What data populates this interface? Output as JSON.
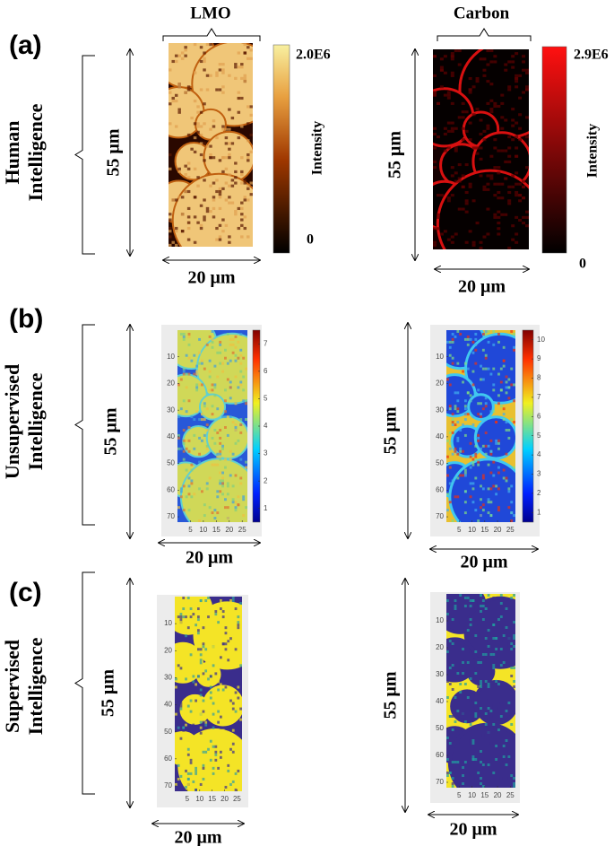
{
  "panels": [
    {
      "label": "(a)",
      "row_label": [
        "Human",
        "Intelligence"
      ],
      "maps": [
        {
          "title": "LMO",
          "height_label": "55 μm",
          "width_label": "20 μm",
          "colorbar": {
            "max_label": "2.0E6",
            "min_label": "0",
            "title": "Intensity"
          }
        },
        {
          "title": "Carbon",
          "height_label": "55 μm",
          "width_label": "20 μm",
          "colorbar": {
            "max_label": "2.9E6",
            "min_label": "0",
            "title": "Intensity"
          }
        }
      ]
    },
    {
      "label": "(b)",
      "row_label": [
        "Unsupervised",
        "Intelligence"
      ],
      "maps": [
        {
          "height_label": "55 μm",
          "width_label": "20 μm",
          "yticks": [
            10,
            20,
            30,
            40,
            50,
            60,
            70
          ],
          "xticks": [
            5,
            10,
            15,
            20,
            25
          ],
          "colorbar": {
            "ticks": [
              1,
              2,
              3,
              4,
              5,
              6,
              7
            ]
          }
        },
        {
          "height_label": "55 μm",
          "width_label": "20 μm",
          "yticks": [
            10,
            20,
            30,
            40,
            50,
            60,
            70
          ],
          "xticks": [
            5,
            10,
            15,
            20,
            25
          ],
          "colorbar": {
            "ticks": [
              1,
              2,
              3,
              4,
              5,
              6,
              7,
              8,
              9,
              10
            ]
          }
        }
      ]
    },
    {
      "label": "(c)",
      "row_label": [
        "Supervised",
        "Intelligence"
      ],
      "maps": [
        {
          "height_label": "55 μm",
          "width_label": "20 μm",
          "yticks": [
            10,
            20,
            30,
            40,
            50,
            60,
            70
          ],
          "xticks": [
            5,
            10,
            15,
            20,
            25
          ]
        },
        {
          "height_label": "55 μm",
          "width_label": "20 μm",
          "yticks": [
            10,
            20,
            30,
            40,
            50,
            60,
            70
          ],
          "xticks": [
            5,
            10,
            15,
            20,
            25
          ]
        }
      ]
    }
  ]
}
